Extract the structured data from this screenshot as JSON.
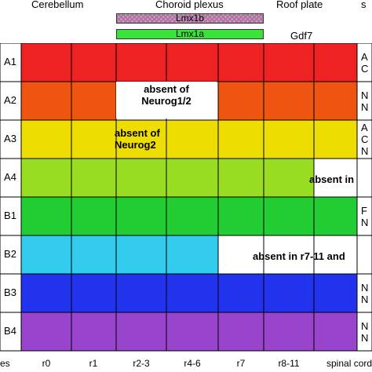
{
  "regions": [
    "Cerebellum",
    "Choroid plexus",
    "Roof plate",
    "s"
  ],
  "bars": {
    "lmx1b": "Lmx1b",
    "lmx1a": "Lmx1a",
    "gdf7": "Gdf7"
  },
  "rows": [
    {
      "label": "A1",
      "color": "#ee2222",
      "right": "A\nC"
    },
    {
      "label": "A2",
      "color": "#ee5511",
      "right": "N\nN"
    },
    {
      "label": "A3",
      "color": "#eedd00",
      "right": "A\nC\nN"
    },
    {
      "label": "A4",
      "color": "#99dd22",
      "right": ""
    },
    {
      "label": "B1",
      "color": "#22cc33",
      "right": "F\nN"
    },
    {
      "label": "B2",
      "color": "#33ccee",
      "right": ""
    },
    {
      "label": "B3",
      "color": "#2233ee",
      "right": "N\nN"
    },
    {
      "label": "B4",
      "color": "#9944cc",
      "right": "N\nN"
    }
  ],
  "columns": [
    "r0",
    "r1",
    "r2-3",
    "r4-6",
    "r7",
    "r8-11",
    "spinal cord"
  ],
  "axis_left": "es",
  "notes": {
    "a2": "absent of\nNeurog1/2",
    "a3": "absent of\nNeurog2",
    "a4": "absent in",
    "b2": "absent in r7-11 and"
  }
}
